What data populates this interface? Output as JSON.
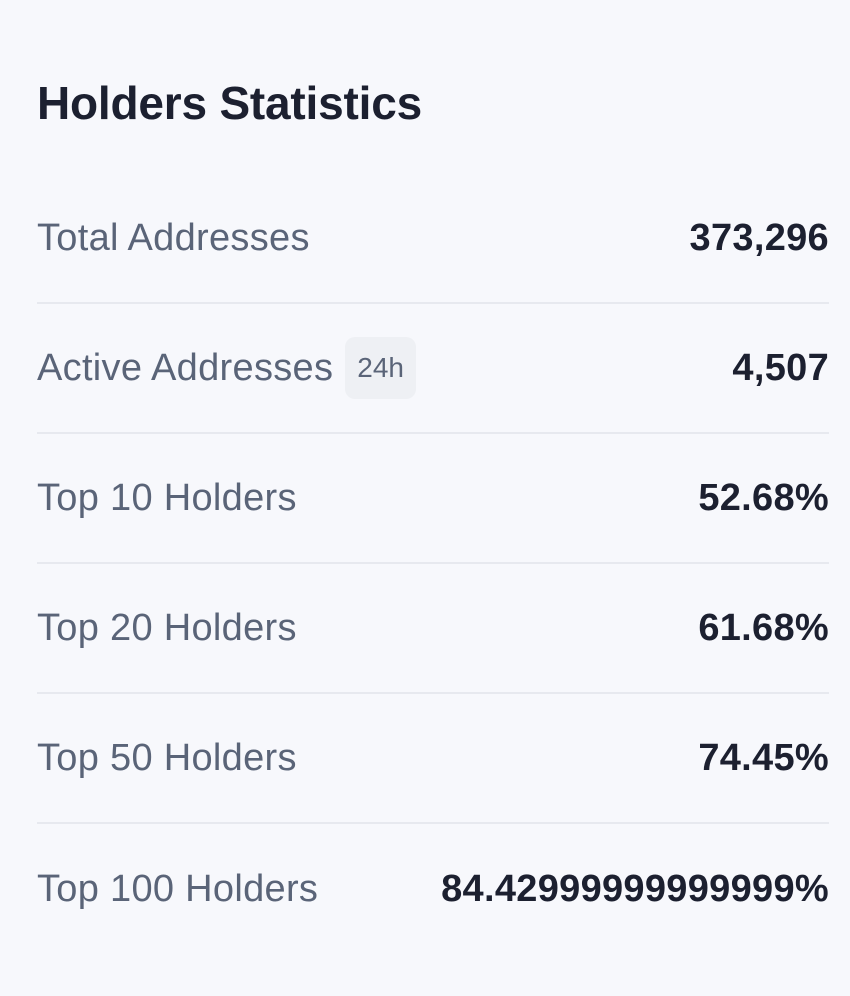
{
  "panel": {
    "title": "Holders Statistics"
  },
  "stats": [
    {
      "label": "Total Addresses",
      "value": "373,296"
    },
    {
      "label": "Active Addresses",
      "badge": "24h",
      "value": "4,507"
    },
    {
      "label": "Top 10 Holders",
      "value": "52.68%"
    },
    {
      "label": "Top 20 Holders",
      "value": "61.68%"
    },
    {
      "label": "Top 50 Holders",
      "value": "74.45%"
    },
    {
      "label": "Top 100 Holders",
      "value": "84.42999999999999%"
    }
  ]
}
